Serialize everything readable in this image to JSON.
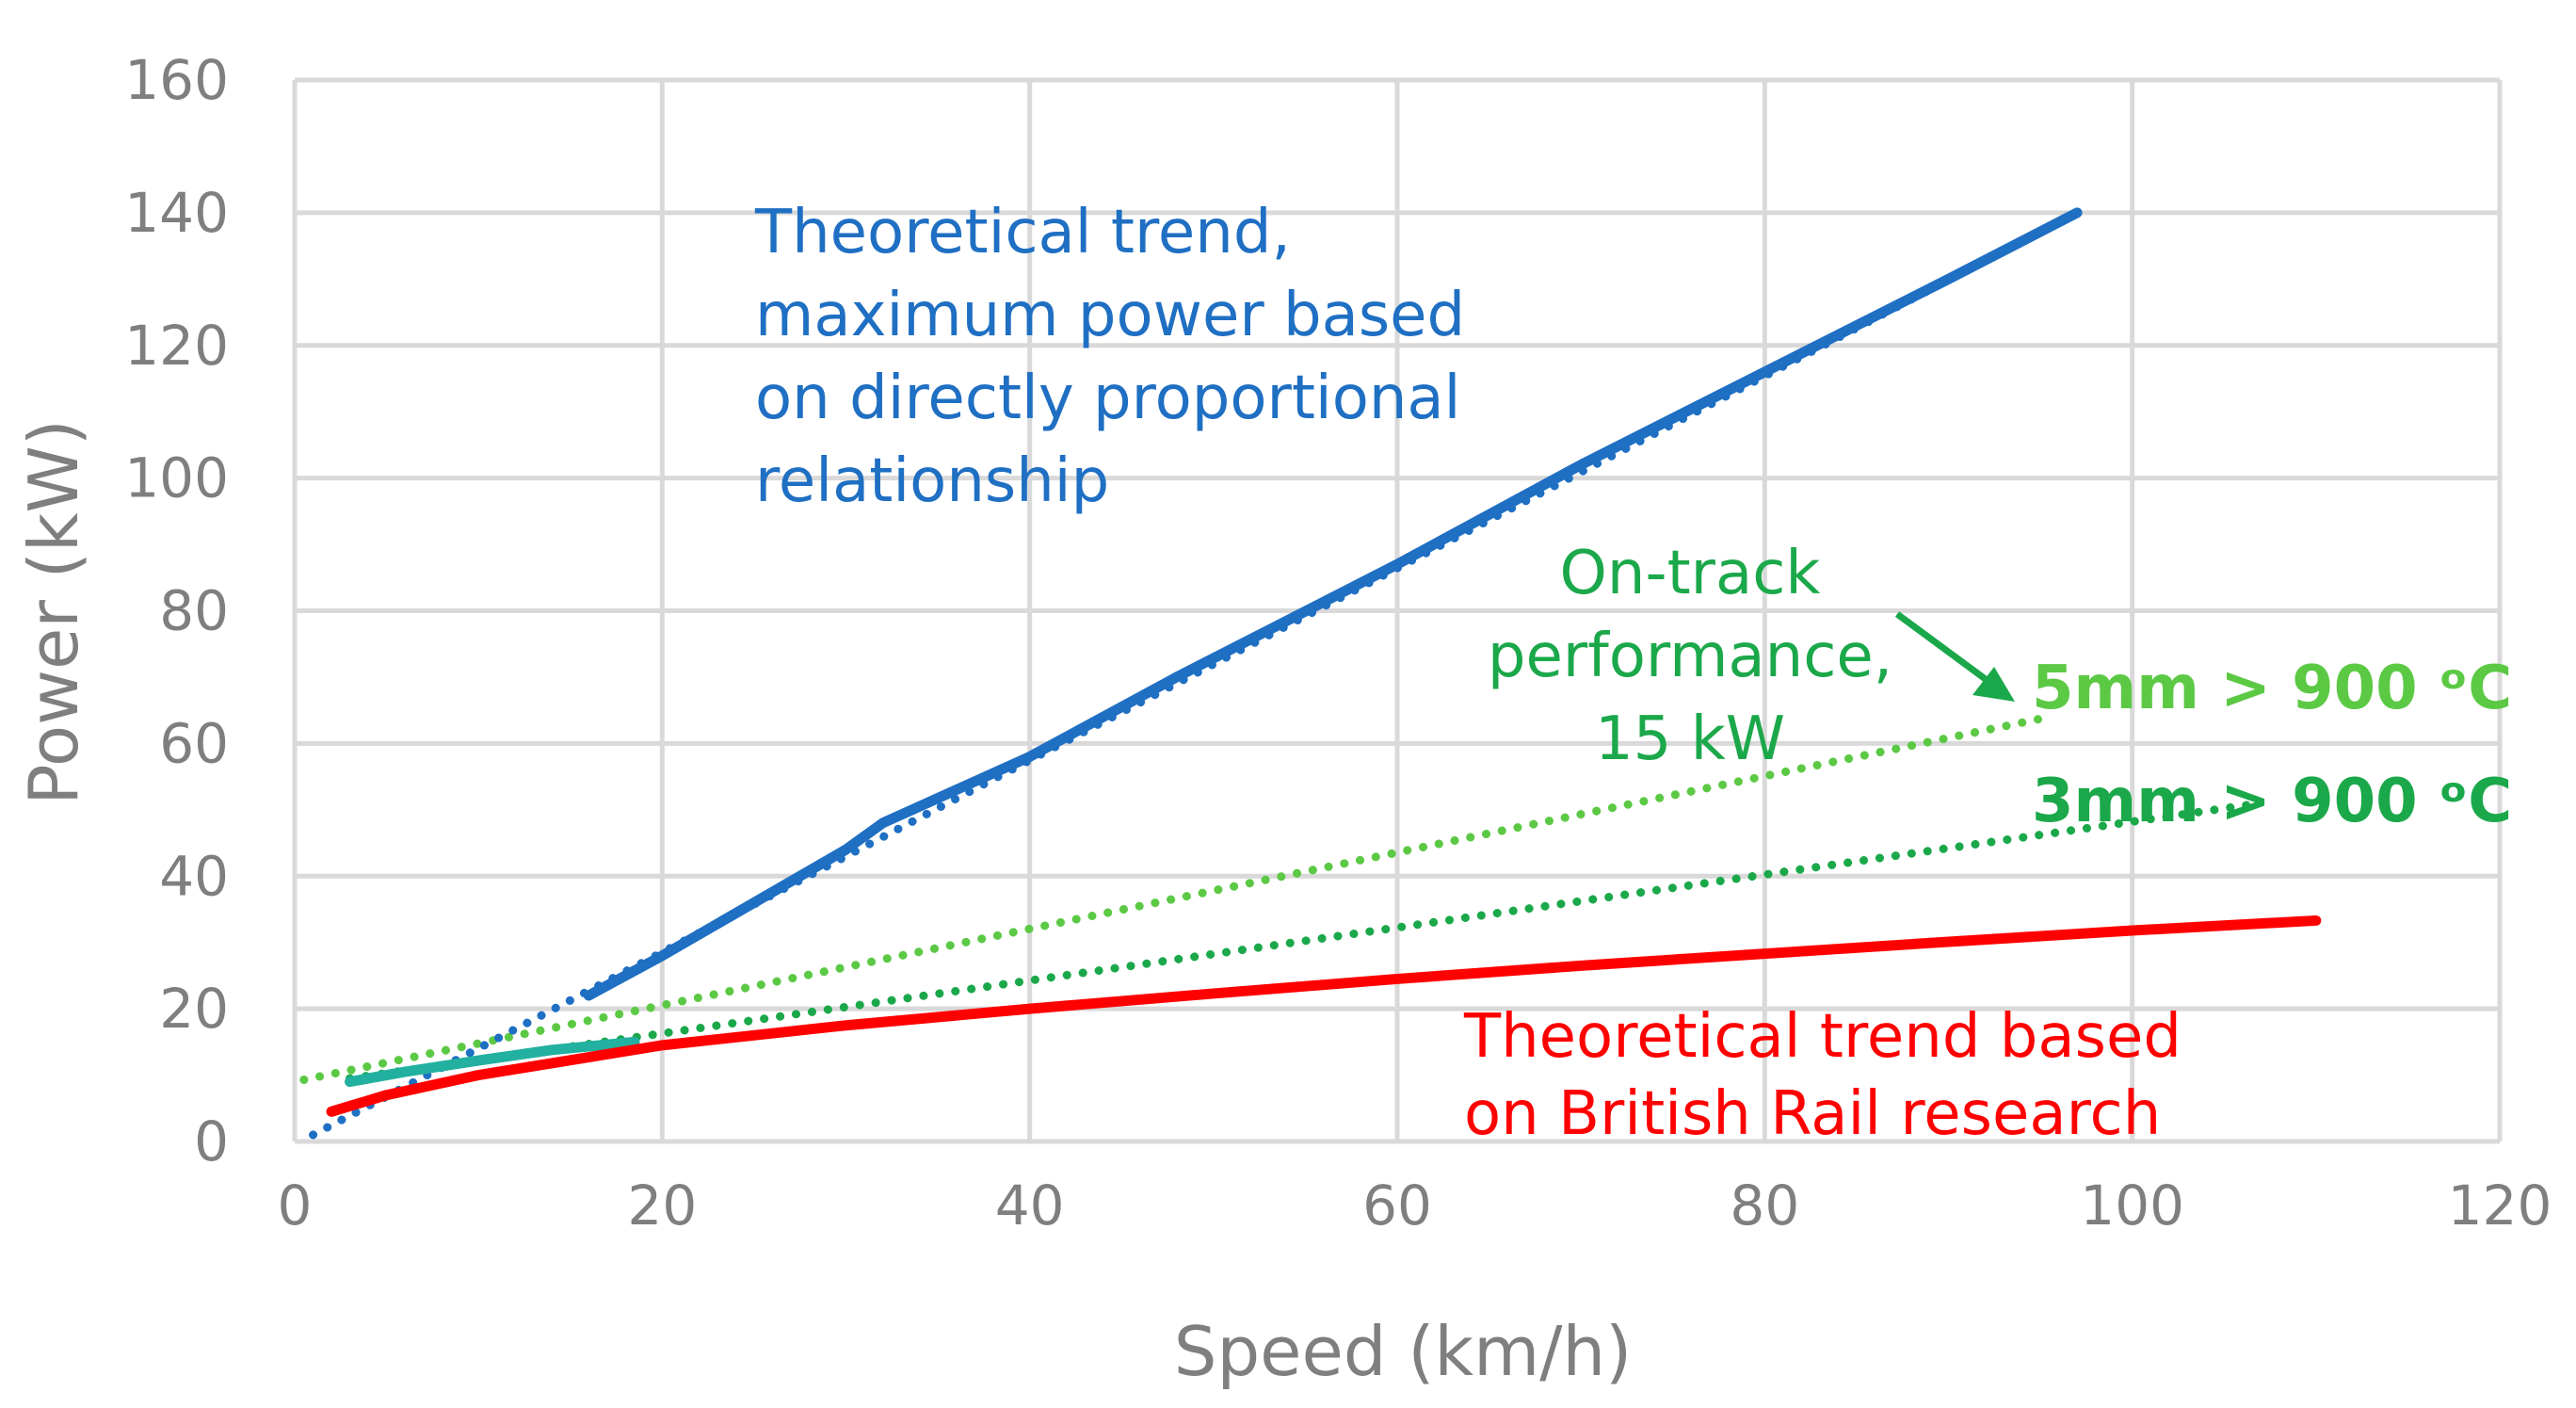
{
  "chart_data": {
    "type": "line",
    "xlabel": "Speed (km/h)",
    "ylabel": "Power (kW)",
    "xlim": [
      0,
      120
    ],
    "ylim": [
      0,
      160
    ],
    "xticks": [
      0,
      20,
      40,
      60,
      80,
      100,
      120
    ],
    "yticks": [
      0,
      20,
      40,
      60,
      80,
      100,
      120,
      140,
      160
    ],
    "grid": true,
    "series": [
      {
        "name": "Theoretical trend, maximum power (solid)",
        "color": "#1f6fc3",
        "style": "solid",
        "x": [
          16,
          20,
          25,
          30,
          32,
          40,
          48,
          60,
          70,
          80,
          90,
          97
        ],
        "y": [
          22,
          28,
          36,
          44,
          48,
          58,
          70,
          87,
          102,
          116,
          130,
          140
        ]
      },
      {
        "name": "Theoretical trend, maximum power (dotted)",
        "color": "#1f6fc3",
        "style": "dotted",
        "x": [
          1,
          97
        ],
        "y": [
          1,
          140
        ]
      },
      {
        "name": "5mm > 900 °C",
        "color": "#5cc945",
        "style": "dotted",
        "x": [
          0.5,
          95.5
        ],
        "y": [
          9.3,
          64
        ]
      },
      {
        "name": "3mm > 900 °C",
        "color": "#1ba84a",
        "style": "dotted",
        "x": [
          3,
          107
        ],
        "y": [
          9.5,
          51
        ]
      },
      {
        "name": "On-track performance, 15 kW",
        "color": "#22b0a0",
        "style": "solid",
        "x": [
          3,
          6,
          10,
          14,
          18.5
        ],
        "y": [
          9,
          10.5,
          12.2,
          13.8,
          15
        ]
      },
      {
        "name": "Theoretical trend based on British Rail research",
        "color": "#ff0000",
        "style": "solid",
        "x": [
          2,
          5,
          10,
          20,
          30,
          40,
          50,
          60,
          70,
          80,
          90,
          100,
          110
        ],
        "y": [
          4.5,
          7,
          10,
          14.5,
          17.5,
          20,
          22.3,
          24.5,
          26.5,
          28.3,
          30.1,
          31.8,
          33.3
        ]
      }
    ],
    "annotations": {
      "blue_lines": [
        "Theoretical trend,",
        "maximum power based",
        "on directly proportional",
        "relationship"
      ],
      "green_lines": [
        "On-track",
        "performance,",
        "15 kW"
      ],
      "label_5mm": "5mm > 900 ᵒC",
      "label_3mm": "3mm > 900 ᵒC",
      "red_lines": [
        "Theoretical trend based",
        "on British Rail research"
      ]
    },
    "colors": {
      "blue_text": "#1f6fc3",
      "green_text": "#1ba84a",
      "light_green_text": "#5cc945",
      "red_text": "#ff0000",
      "arrow": "#1ba84a"
    }
  }
}
